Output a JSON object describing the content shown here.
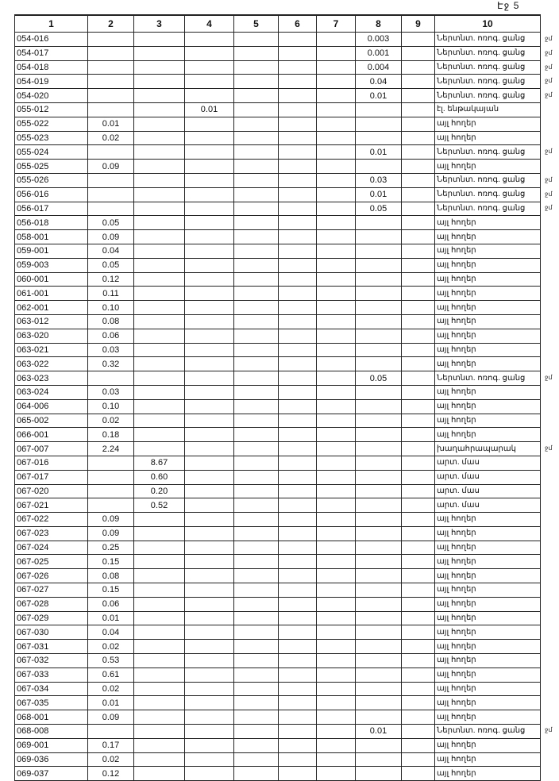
{
  "page_label": "Էջ 5",
  "columns": [
    "1",
    "2",
    "3",
    "4",
    "5",
    "6",
    "7",
    "8",
    "9",
    "10"
  ],
  "rows": [
    {
      "c1": "054-016",
      "c2": "",
      "c3": "",
      "c4": "",
      "c8": "0.003",
      "c10": "Ներտնտ. ոռոգ. ցանց",
      "note": "ջմ"
    },
    {
      "c1": "054-017",
      "c2": "",
      "c3": "",
      "c4": "",
      "c8": "0.001",
      "c10": "Ներտնտ. ոռոգ. ցանց",
      "note": "ջմ"
    },
    {
      "c1": "054-018",
      "c2": "",
      "c3": "",
      "c4": "",
      "c8": "0.004",
      "c10": "Ներտնտ. ոռոգ. ցանց",
      "note": "ջմ"
    },
    {
      "c1": "054-019",
      "c2": "",
      "c3": "",
      "c4": "",
      "c8": "0.04",
      "c10": "Ներտնտ. ոռոգ. ցանց",
      "note": "ջմ"
    },
    {
      "c1": "054-020",
      "c2": "",
      "c3": "",
      "c4": "",
      "c8": "0.01",
      "c10": "Ներտնտ. ոռոգ. ցանց",
      "note": "ջմ"
    },
    {
      "c1": "055-012",
      "c2": "",
      "c3": "",
      "c4": "0.01",
      "c8": "",
      "c10": "էլ. ենթակայան"
    },
    {
      "c1": "055-022",
      "c2": "0.01",
      "c3": "",
      "c4": "",
      "c8": "",
      "c10": "այլ հողեր"
    },
    {
      "c1": "055-023",
      "c2": "0.02",
      "c3": "",
      "c4": "",
      "c8": "",
      "c10": "այլ հողեր"
    },
    {
      "c1": "055-024",
      "c2": "",
      "c3": "",
      "c4": "",
      "c8": "0.01",
      "c10": "Ներտնտ. ոռոգ. ցանց",
      "note": "ջմ"
    },
    {
      "c1": "055-025",
      "c2": "0.09",
      "c3": "",
      "c4": "",
      "c8": "",
      "c10": "այլ հողեր"
    },
    {
      "c1": "055-026",
      "c2": "",
      "c3": "",
      "c4": "",
      "c8": "0.03",
      "c10": "Ներտնտ. ոռոգ. ցանց",
      "note": "ջմ"
    },
    {
      "c1": "056-016",
      "c2": "",
      "c3": "",
      "c4": "",
      "c8": "0.01",
      "c10": "Ներտնտ. ոռոգ. ցանց",
      "note": "ջմ"
    },
    {
      "c1": "056-017",
      "c2": "",
      "c3": "",
      "c4": "",
      "c8": "0.05",
      "c10": "Ներտնտ. ոռոգ. ցանց",
      "note": "ջմ"
    },
    {
      "c1": "056-018",
      "c2": "0.05",
      "c3": "",
      "c4": "",
      "c8": "",
      "c10": "այլ հողեր"
    },
    {
      "c1": "058-001",
      "c2": "0.09",
      "c3": "",
      "c4": "",
      "c8": "",
      "c10": "այլ հողեր"
    },
    {
      "c1": "059-001",
      "c2": "0.04",
      "c3": "",
      "c4": "",
      "c8": "",
      "c10": "այլ հողեր"
    },
    {
      "c1": "059-003",
      "c2": "0.05",
      "c3": "",
      "c4": "",
      "c8": "",
      "c10": "այլ հողեր"
    },
    {
      "c1": "060-001",
      "c2": "0.12",
      "c3": "",
      "c4": "",
      "c8": "",
      "c10": "այլ հողեր"
    },
    {
      "c1": "061-001",
      "c2": "0.11",
      "c3": "",
      "c4": "",
      "c8": "",
      "c10": "այլ հողեր"
    },
    {
      "c1": "062-001",
      "c2": "0.10",
      "c3": "",
      "c4": "",
      "c8": "",
      "c10": "այլ հողեր"
    },
    {
      "c1": "063-012",
      "c2": "0.08",
      "c3": "",
      "c4": "",
      "c8": "",
      "c10": "այլ հողեր"
    },
    {
      "c1": "063-020",
      "c2": "0.06",
      "c3": "",
      "c4": "",
      "c8": "",
      "c10": "այլ հողեր"
    },
    {
      "c1": "063-021",
      "c2": "0.03",
      "c3": "",
      "c4": "",
      "c8": "",
      "c10": "այլ հողեր"
    },
    {
      "c1": "063-022",
      "c2": "0.32",
      "c3": "",
      "c4": "",
      "c8": "",
      "c10": "այլ հողեր"
    },
    {
      "c1": "063-023",
      "c2": "",
      "c3": "",
      "c4": "",
      "c8": "0.05",
      "c10": "Ներտնտ. ոռոգ. ցանց",
      "note": "ջմ"
    },
    {
      "c1": "063-024",
      "c2": "0.03",
      "c3": "",
      "c4": "",
      "c8": "",
      "c10": "այլ հողեր"
    },
    {
      "c1": "064-006",
      "c2": "0.10",
      "c3": "",
      "c4": "",
      "c8": "",
      "c10": "այլ հողեր"
    },
    {
      "c1": "065-002",
      "c2": "0.02",
      "c3": "",
      "c4": "",
      "c8": "",
      "c10": "այլ հողեր"
    },
    {
      "c1": "066-001",
      "c2": "0.18",
      "c3": "",
      "c4": "",
      "c8": "",
      "c10": "այլ հողեր"
    },
    {
      "c1": "067-007",
      "c2": "2.24",
      "c3": "",
      "c4": "",
      "c8": "",
      "c10": "խաղահրապարակ",
      "note": "ջմ"
    },
    {
      "c1": "067-016",
      "c2": "",
      "c3": "8.67",
      "c4": "",
      "c8": "",
      "c10": "արտ. մաս"
    },
    {
      "c1": "067-017",
      "c2": "",
      "c3": "0.60",
      "c4": "",
      "c8": "",
      "c10": "արտ. մաս"
    },
    {
      "c1": "067-020",
      "c2": "",
      "c3": "0.20",
      "c4": "",
      "c8": "",
      "c10": "արտ. մաս"
    },
    {
      "c1": "067-021",
      "c2": "",
      "c3": "0.52",
      "c4": "",
      "c8": "",
      "c10": "արտ. մաս"
    },
    {
      "c1": "067-022",
      "c2": "0.09",
      "c3": "",
      "c4": "",
      "c8": "",
      "c10": "այլ հողեր"
    },
    {
      "c1": "067-023",
      "c2": "0.09",
      "c3": "",
      "c4": "",
      "c8": "",
      "c10": "այլ հողեր"
    },
    {
      "c1": "067-024",
      "c2": "0.25",
      "c3": "",
      "c4": "",
      "c8": "",
      "c10": "այլ հողեր"
    },
    {
      "c1": "067-025",
      "c2": "0.15",
      "c3": "",
      "c4": "",
      "c8": "",
      "c10": "այլ հողեր"
    },
    {
      "c1": "067-026",
      "c2": "0.08",
      "c3": "",
      "c4": "",
      "c8": "",
      "c10": "այլ հողեր"
    },
    {
      "c1": "067-027",
      "c2": "0.15",
      "c3": "",
      "c4": "",
      "c8": "",
      "c10": "այլ հողեր"
    },
    {
      "c1": "067-028",
      "c2": "0.06",
      "c3": "",
      "c4": "",
      "c8": "",
      "c10": "այլ հողեր"
    },
    {
      "c1": "067-029",
      "c2": "0.01",
      "c3": "",
      "c4": "",
      "c8": "",
      "c10": "այլ հողեր"
    },
    {
      "c1": "067-030",
      "c2": "0.04",
      "c3": "",
      "c4": "",
      "c8": "",
      "c10": "այլ հողեր"
    },
    {
      "c1": "067-031",
      "c2": "0.02",
      "c3": "",
      "c4": "",
      "c8": "",
      "c10": "այլ հողեր"
    },
    {
      "c1": "067-032",
      "c2": "0.53",
      "c3": "",
      "c4": "",
      "c8": "",
      "c10": "այլ հողեր"
    },
    {
      "c1": "067-033",
      "c2": "0.61",
      "c3": "",
      "c4": "",
      "c8": "",
      "c10": "այլ հողեր"
    },
    {
      "c1": "067-034",
      "c2": "0.02",
      "c3": "",
      "c4": "",
      "c8": "",
      "c10": "այլ հողեր"
    },
    {
      "c1": "067-035",
      "c2": "0.01",
      "c3": "",
      "c4": "",
      "c8": "",
      "c10": "այլ հողեր"
    },
    {
      "c1": "068-001",
      "c2": "0.09",
      "c3": "",
      "c4": "",
      "c8": "",
      "c10": "այլ հողեր"
    },
    {
      "c1": "068-008",
      "c2": "",
      "c3": "",
      "c4": "",
      "c8": "0.01",
      "c10": "Ներտնտ. ոռոգ. ցանց",
      "note": "ջմ"
    },
    {
      "c1": "069-001",
      "c2": "0.17",
      "c3": "",
      "c4": "",
      "c8": "",
      "c10": "այլ հողեր"
    },
    {
      "c1": "069-036",
      "c2": "0.02",
      "c3": "",
      "c4": "",
      "c8": "",
      "c10": "այլ հողեր"
    },
    {
      "c1": "069-037",
      "c2": "0.12",
      "c3": "",
      "c4": "",
      "c8": "",
      "c10": "այլ հողեր"
    }
  ]
}
